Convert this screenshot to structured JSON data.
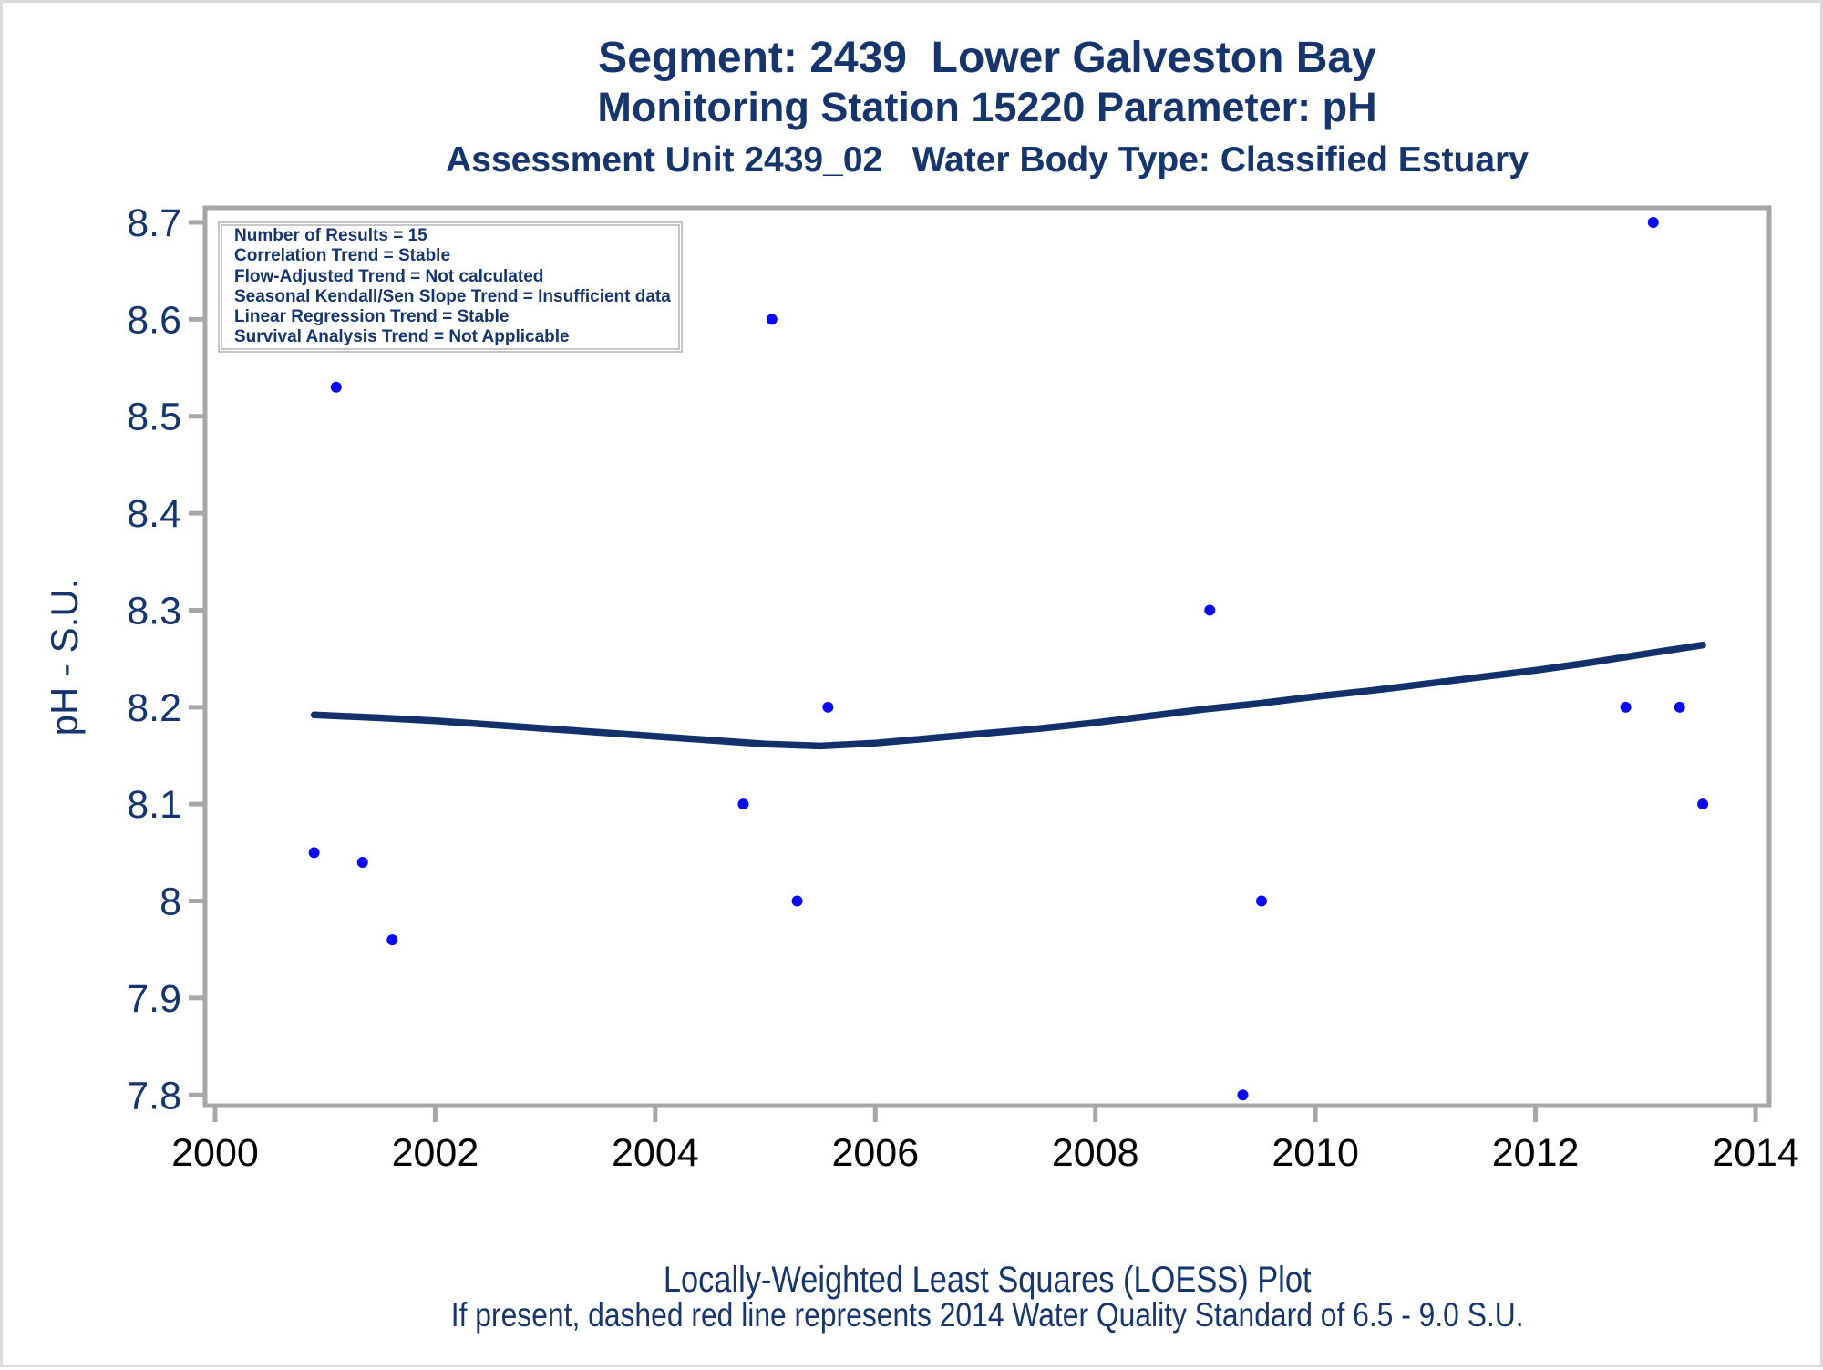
{
  "titles": {
    "line1": "Segment: 2439  Lower Galveston Bay",
    "line2": "Monitoring Station 15220 Parameter: pH",
    "line3": "Assessment Unit 2439_02   Water Body Type: Classified Estuary"
  },
  "footnotes": {
    "line1": "Locally-Weighted Least Squares (LOESS) Plot",
    "line2": "If present, dashed red line represents 2014 Water Quality Standard of 6.5 - 9.0 S.U."
  },
  "stats_box": {
    "lines": [
      "Number of Results = 15",
      "Correlation Trend = Stable",
      "Flow-Adjusted Trend = Not calculated",
      "Seasonal Kendall/Sen Slope Trend = Insufficient data",
      "Linear Regression Trend = Stable",
      "Survival Analysis Trend = Not Applicable"
    ]
  },
  "chart_data": {
    "type": "scatter",
    "title": "Segment: 2439  Lower Galveston Bay",
    "xlabel": "",
    "ylabel": "pH - S.U.",
    "x_axis": {
      "min": 1999.909,
      "max": 2014.124,
      "ticks": [
        2000,
        2002,
        2004,
        2006,
        2008,
        2010,
        2012,
        2014
      ],
      "tick_labels": [
        "2000",
        "2002",
        "2004",
        "2006",
        "2008",
        "2010",
        "2012",
        "2014"
      ]
    },
    "y_axis": {
      "min": 7.789,
      "max": 8.715,
      "ticks": [
        8.7,
        8.6,
        8.5,
        8.4,
        8.3,
        8.2,
        8.1,
        8.0,
        7.9,
        7.8
      ],
      "tick_labels": [
        "8.7",
        "8.6",
        "8.5",
        "8.4",
        "8.3",
        "8.2",
        "8.1",
        "8",
        "7.9",
        "7.8"
      ]
    },
    "points": [
      {
        "x": 2000.9,
        "y": 8.05
      },
      {
        "x": 2001.1,
        "y": 8.53
      },
      {
        "x": 2001.34,
        "y": 8.04
      },
      {
        "x": 2001.61,
        "y": 7.96
      },
      {
        "x": 2004.8,
        "y": 8.1
      },
      {
        "x": 2005.06,
        "y": 8.6
      },
      {
        "x": 2005.29,
        "y": 8.0
      },
      {
        "x": 2005.57,
        "y": 8.2
      },
      {
        "x": 2009.04,
        "y": 8.3
      },
      {
        "x": 2009.34,
        "y": 7.8
      },
      {
        "x": 2009.51,
        "y": 8.0
      },
      {
        "x": 2012.82,
        "y": 8.2
      },
      {
        "x": 2013.07,
        "y": 8.7
      },
      {
        "x": 2013.31,
        "y": 8.2
      },
      {
        "x": 2013.52,
        "y": 8.1
      }
    ],
    "loess_line": [
      [
        2000.9,
        8.192
      ],
      [
        2001.5,
        8.189
      ],
      [
        2002.0,
        8.186
      ],
      [
        2002.5,
        8.182
      ],
      [
        2003.0,
        8.178
      ],
      [
        2003.5,
        8.174
      ],
      [
        2004.0,
        8.17
      ],
      [
        2004.5,
        8.166
      ],
      [
        2005.0,
        8.162
      ],
      [
        2005.5,
        8.16
      ],
      [
        2006.0,
        8.163
      ],
      [
        2006.5,
        8.168
      ],
      [
        2007.0,
        8.173
      ],
      [
        2007.5,
        8.178
      ],
      [
        2008.0,
        8.184
      ],
      [
        2008.5,
        8.191
      ],
      [
        2009.0,
        8.198
      ],
      [
        2009.5,
        8.204
      ],
      [
        2010.0,
        8.211
      ],
      [
        2010.5,
        8.217
      ],
      [
        2011.0,
        8.224
      ],
      [
        2011.5,
        8.231
      ],
      [
        2012.0,
        8.238
      ],
      [
        2012.5,
        8.246
      ],
      [
        2013.0,
        8.255
      ],
      [
        2013.52,
        8.264
      ]
    ],
    "legend_position": "top-left",
    "grid": false,
    "colors": {
      "marker": "#0a0af0",
      "loess_line": "#13306b",
      "axis": "#a6a6a6",
      "tick_label_y": "#16356d",
      "tick_label_x": "#000000",
      "title_text": "#16356d"
    }
  }
}
